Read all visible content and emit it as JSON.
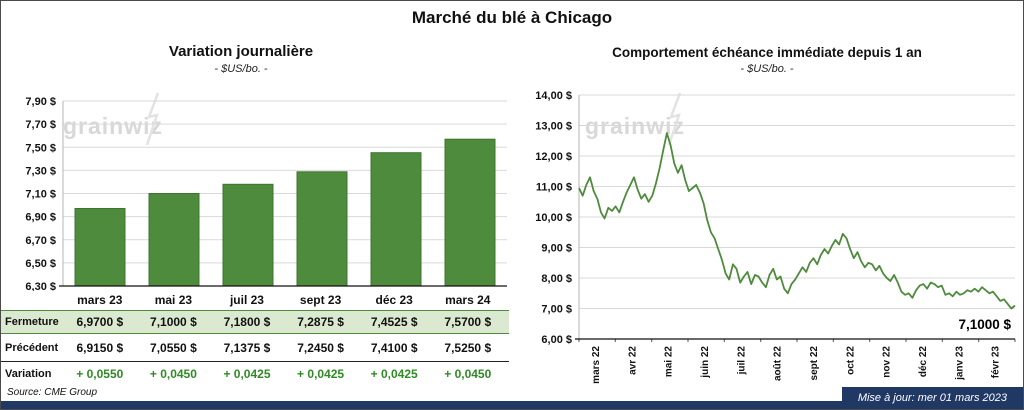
{
  "page": {
    "title": "Marché du blé à Chicago",
    "source": "Source: CME Group",
    "updated": "Mise à jour: mer 01 mars 2023",
    "watermark": "grainwiz"
  },
  "colors": {
    "green": "#4e8b3c",
    "green_border": "#3e7430",
    "table_highlight": "#dbe9d0",
    "variation_text": "#2f8a25",
    "navy": "#1F3864",
    "grid": "#d9d9d9",
    "watermark": "#d8d8d8"
  },
  "chart_data": [
    {
      "type": "bar",
      "title": "Variation journalière",
      "subtitle": "- $US/bo. -",
      "categories": [
        "mars 23",
        "mai 23",
        "juil 23",
        "sept 23",
        "déc 23",
        "mars 24"
      ],
      "values": [
        6.97,
        7.1,
        7.18,
        7.2875,
        7.4525,
        7.57
      ],
      "ylim": [
        6.3,
        7.9
      ],
      "ytick_step": 0.2,
      "ytick_suffix": " $",
      "grid": true,
      "legend": "none",
      "bar_color": "#4e8b3c"
    },
    {
      "type": "line",
      "title": "Comportement échéance immédiate depuis 1 an",
      "subtitle": "- $US/bo. -",
      "x_labels": [
        "mars 22",
        "avr 22",
        "mai 22",
        "juin 22",
        "juil 22",
        "août 22",
        "sept 22",
        "oct 22",
        "nov 22",
        "déc 22",
        "janv 23",
        "févr 23"
      ],
      "values": [
        10.95,
        10.7,
        11.05,
        11.3,
        10.85,
        10.6,
        10.15,
        9.95,
        10.3,
        10.2,
        10.35,
        10.15,
        10.5,
        10.8,
        11.05,
        11.3,
        10.9,
        10.6,
        10.75,
        10.5,
        10.7,
        11.1,
        11.6,
        12.2,
        12.75,
        12.35,
        11.75,
        11.45,
        11.7,
        11.2,
        10.85,
        10.95,
        11.05,
        10.8,
        10.45,
        9.9,
        9.5,
        9.3,
        8.95,
        8.6,
        8.15,
        7.95,
        8.45,
        8.3,
        7.85,
        8.05,
        8.2,
        7.8,
        8.1,
        8.05,
        7.85,
        7.7,
        8.1,
        8.3,
        7.95,
        8.05,
        7.65,
        7.5,
        7.8,
        7.95,
        8.15,
        8.35,
        8.2,
        8.5,
        8.65,
        8.45,
        8.75,
        8.95,
        8.8,
        9.05,
        9.25,
        9.1,
        9.45,
        9.3,
        8.95,
        8.65,
        8.85,
        8.55,
        8.35,
        8.5,
        8.45,
        8.25,
        8.4,
        8.15,
        8.0,
        7.9,
        8.1,
        7.85,
        7.55,
        7.45,
        7.5,
        7.35,
        7.6,
        7.75,
        7.8,
        7.65,
        7.85,
        7.8,
        7.7,
        7.75,
        7.45,
        7.5,
        7.4,
        7.55,
        7.45,
        7.5,
        7.6,
        7.55,
        7.65,
        7.55,
        7.7,
        7.6,
        7.5,
        7.55,
        7.4,
        7.25,
        7.3,
        7.15,
        7.0,
        7.1
      ],
      "ylim": [
        6.0,
        14.0
      ],
      "ytick_step": 1.0,
      "ytick_suffix": " $",
      "grid": true,
      "legend": "none",
      "last_value_label": "7,1000 $",
      "line_color": "#4e8b3c"
    }
  ],
  "table": {
    "headers": [
      "mars 23",
      "mai 23",
      "juil 23",
      "sept 23",
      "déc 23",
      "mars 24"
    ],
    "rows": [
      {
        "label": "Fermeture",
        "values": [
          "6,9700  $",
          "7,1000  $",
          "7,1800  $",
          "7,2875  $",
          "7,4525  $",
          "7,5700  $"
        ],
        "highlight": true
      },
      {
        "label": "Précédent",
        "values": [
          "6,9150  $",
          "7,0550  $",
          "7,1375  $",
          "7,2450  $",
          "7,4100  $",
          "7,5250  $"
        ],
        "highlight": false
      },
      {
        "label": "Variation",
        "values": [
          "+ 0,0550",
          "+ 0,0450",
          "+ 0,0425",
          "+ 0,0425",
          "+ 0,0425",
          "+ 0,0450"
        ],
        "green": true
      }
    ]
  }
}
